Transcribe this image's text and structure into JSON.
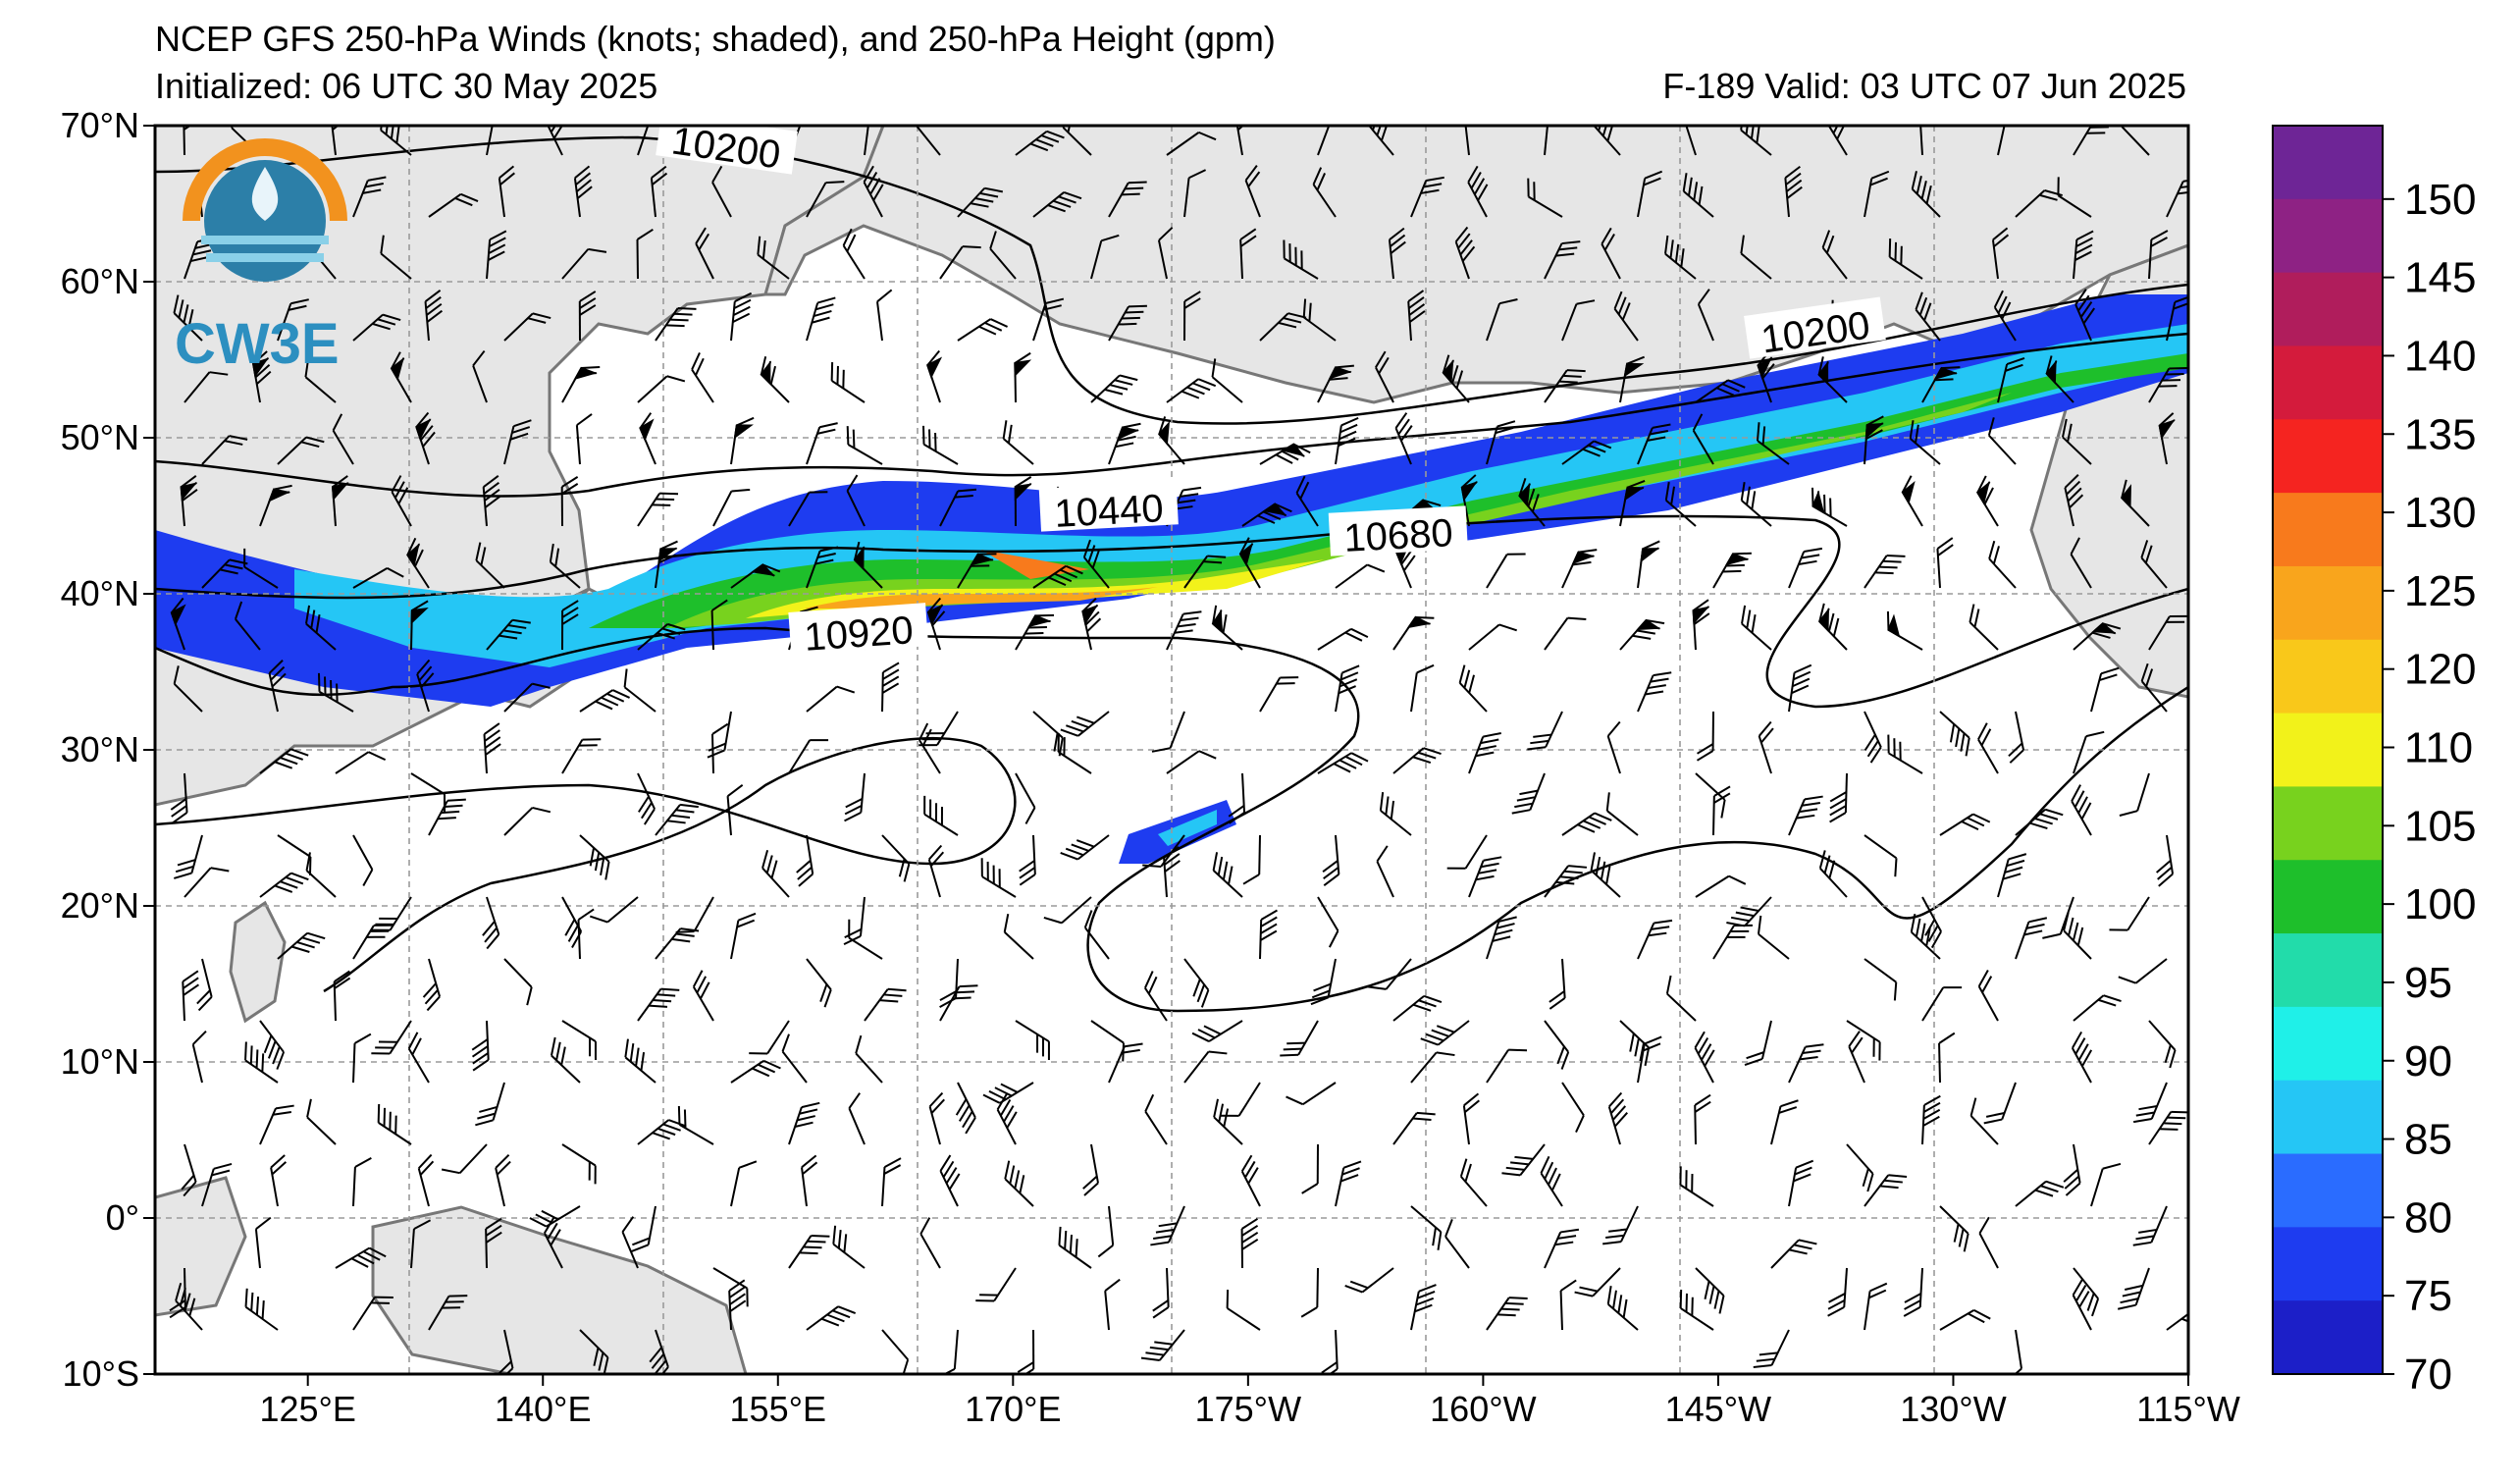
{
  "header": {
    "title_line1": "NCEP GFS 250-hPa Winds (knots; shaded), and 250-hPa Height (gpm)",
    "title_line2": "Initialized: 06 UTC 30 May 2025",
    "valid": "F-189  Valid: 03 UTC 07 Jun 2025"
  },
  "logo": {
    "text": "CW3E"
  },
  "axes": {
    "lat_labels": [
      "70°N",
      "60°N",
      "50°N",
      "40°N",
      "30°N",
      "20°N",
      "10°N",
      "0°",
      "10°S"
    ],
    "lon_labels": [
      "125°E",
      "140°E",
      "155°E",
      "170°E",
      "175°W",
      "160°W",
      "145°W",
      "130°W",
      "115°W"
    ]
  },
  "contours": {
    "labels": [
      "10200",
      "10440",
      "10680",
      "10920",
      "10200"
    ]
  },
  "colorbar": {
    "labels": [
      "70",
      "75",
      "80",
      "85",
      "90",
      "95",
      "100",
      "105",
      "110",
      "120",
      "125",
      "130",
      "135",
      "140",
      "145",
      "150"
    ],
    "colors": [
      "#1c1fc8",
      "#1e3cf0",
      "#2a6cff",
      "#25c6f5",
      "#1ff0e8",
      "#22dcaa",
      "#1ebf2b",
      "#78d21e",
      "#f2f21a",
      "#f9c81a",
      "#f9a51c",
      "#f87a1c",
      "#f52420",
      "#d41b3c",
      "#b01d5c",
      "#8e2284",
      "#6e2596"
    ]
  },
  "colors": {
    "land": "#e6e6e6",
    "coast": "#777777",
    "grid": "#9a9a9a",
    "jet_core": "#f9a51c"
  }
}
